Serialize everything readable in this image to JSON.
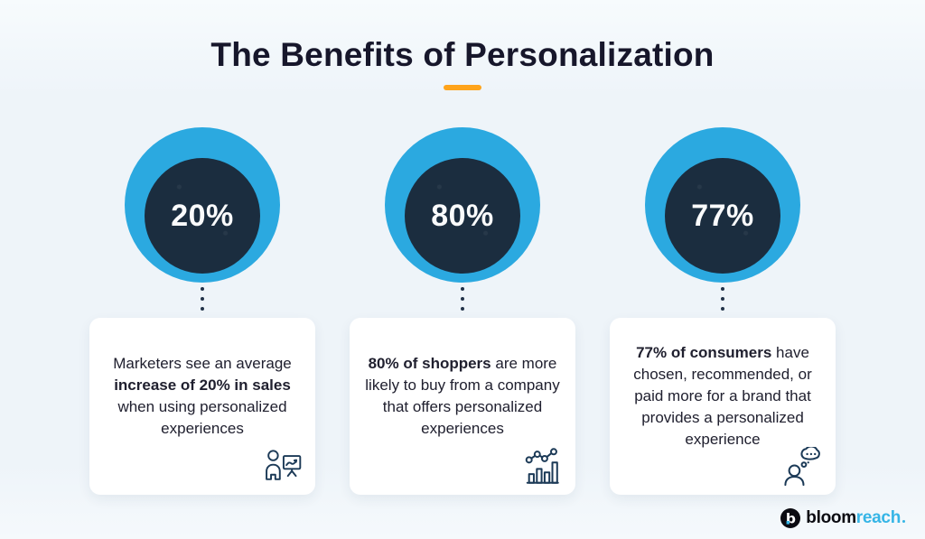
{
  "title": "The Benefits of Personalization",
  "stats": [
    {
      "value": "20%",
      "description_parts": [
        {
          "text": "Marketers see an average ",
          "bold": false
        },
        {
          "text": "increase of 20% in sales",
          "bold": true
        },
        {
          "text": " when using personalized experiences",
          "bold": false
        }
      ],
      "icon": "person-presentation-chart-icon"
    },
    {
      "value": "80%",
      "description_parts": [
        {
          "text": "80% of shoppers",
          "bold": true
        },
        {
          "text": " are more likely to buy from a company that offers personalized experiences",
          "bold": false
        }
      ],
      "icon": "growth-bar-chart-icon"
    },
    {
      "value": "77%",
      "description_parts": [
        {
          "text": "77% of consumers",
          "bold": true
        },
        {
          "text": " have chosen, recommended, or paid more for a brand that provides a personalized experience",
          "bold": false
        }
      ],
      "icon": "person-thinking-icon"
    }
  ],
  "logo": {
    "mark_letter": "b",
    "text_dark": "bloom",
    "text_light": "reach"
  },
  "colors": {
    "background": "#EEF4F9",
    "outer_circle": "#2BA9E0",
    "inner_circle": "#1B2D3F",
    "accent_underline": "#FFA41B",
    "title_text": "#17172B",
    "body_text": "#20202F",
    "logo_reach": "#36B5E6"
  }
}
